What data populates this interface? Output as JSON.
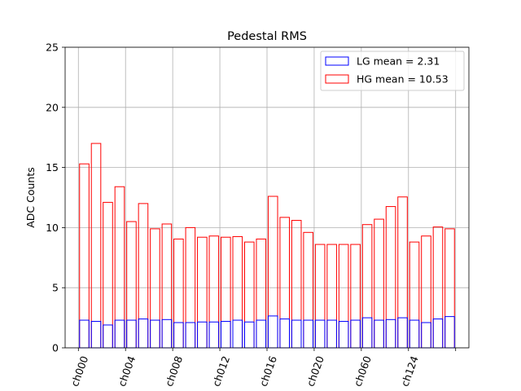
{
  "chart_data": {
    "type": "bar",
    "title": "Pedestal RMS",
    "xlabel": "",
    "ylabel": "ADC Counts",
    "ylim": [
      0,
      25
    ],
    "yticks": [
      0,
      5,
      10,
      15,
      20,
      25
    ],
    "grid": true,
    "legend_position": "top-right",
    "xtick_labels": [
      "ch000",
      "ch004",
      "ch008",
      "ch012",
      "ch016",
      "ch020",
      "ch060",
      "ch124"
    ],
    "series": [
      {
        "name": "LG mean = 2.31",
        "color": "#0000ff",
        "values": [
          2.3,
          2.2,
          1.9,
          2.3,
          2.3,
          2.4,
          2.3,
          2.35,
          2.1,
          2.1,
          2.15,
          2.15,
          2.2,
          2.3,
          2.15,
          2.3,
          2.65,
          2.4,
          2.3,
          2.3,
          2.3,
          2.3,
          2.2,
          2.3,
          2.5,
          2.3,
          2.35,
          2.5,
          2.3,
          2.1,
          2.4,
          2.6
        ]
      },
      {
        "name": "HG mean = 10.53",
        "color": "#ff0000",
        "values": [
          15.3,
          17.0,
          12.1,
          13.4,
          10.5,
          12.0,
          9.9,
          10.3,
          9.05,
          10.0,
          9.2,
          9.3,
          9.2,
          9.25,
          8.8,
          9.05,
          12.6,
          10.85,
          10.6,
          9.6,
          8.6,
          8.6,
          8.6,
          8.6,
          10.25,
          10.7,
          11.75,
          12.55,
          8.8,
          9.3,
          10.05,
          9.9
        ]
      }
    ]
  }
}
